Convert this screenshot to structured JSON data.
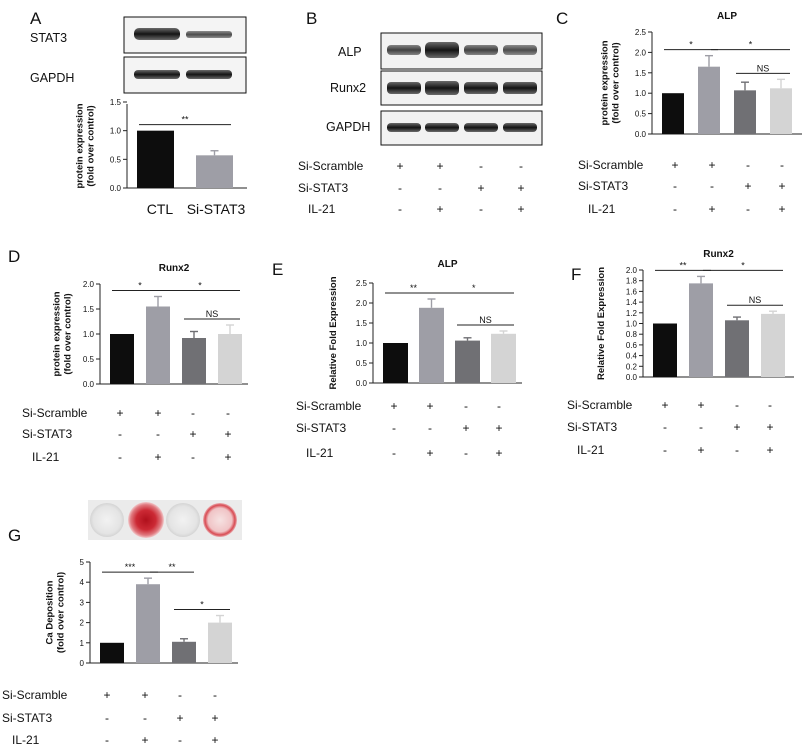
{
  "figure": {
    "conditions": {
      "labels": [
        "Si-Scramble",
        "Si-STAT3",
        "IL-21"
      ],
      "rows": [
        [
          "+",
          "+",
          "-",
          "-"
        ],
        [
          "-",
          "-",
          "+",
          "+"
        ],
        [
          "-",
          "+",
          "-",
          "+"
        ]
      ]
    },
    "blots": {
      "A": [
        "STAT3",
        "GAPDH"
      ],
      "B": [
        "ALP",
        "Runx2",
        "GAPDH"
      ]
    },
    "colors": {
      "bar1": "#0d0d0d",
      "bar2": "#9e9ea6",
      "bar3": "#707074",
      "bar4": "#d4d4d4",
      "axis": "#222222"
    }
  },
  "chart_data": [
    {
      "panel": "A",
      "type": "bar",
      "title": "",
      "ylabel": [
        "protein expression",
        "(fold over control)"
      ],
      "categories": [
        "CTL",
        "Si-STAT3"
      ],
      "values": [
        1.0,
        0.57
      ],
      "errors": [
        0,
        0.08
      ],
      "ylim": [
        0,
        1.5
      ],
      "ticks": [
        0,
        0.5,
        1.0,
        1.5
      ],
      "tick_labels": [
        "0.0",
        "0.5",
        "1.0",
        "1.5"
      ],
      "comparisons": [
        {
          "from": 0,
          "to": 1,
          "label": "**"
        }
      ]
    },
    {
      "panel": "C",
      "type": "bar",
      "title": "ALP",
      "ylabel": [
        "protein expression",
        "(fold over control)"
      ],
      "values": [
        1.0,
        1.65,
        1.07,
        1.12
      ],
      "errors": [
        0,
        0.27,
        0.2,
        0.22
      ],
      "ylim": [
        0,
        2.5
      ],
      "ticks": [
        0,
        0.5,
        1.0,
        1.5,
        2.0,
        2.5
      ],
      "tick_labels": [
        "0.0",
        "0.5",
        "1.0",
        "1.5",
        "2.0",
        "2.5"
      ],
      "comparisons": [
        {
          "from": 0,
          "to": 1,
          "label": "*"
        },
        {
          "from": 1,
          "to": 3,
          "label": "*"
        },
        {
          "from": 2,
          "to": 3,
          "label": "NS"
        }
      ]
    },
    {
      "panel": "D",
      "type": "bar",
      "title": "Runx2",
      "ylabel": [
        "protein expression",
        "(fold over control)"
      ],
      "values": [
        1.0,
        1.55,
        0.92,
        1.0
      ],
      "errors": [
        0,
        0.2,
        0.13,
        0.18
      ],
      "ylim": [
        0,
        2.0
      ],
      "ticks": [
        0,
        0.5,
        1.0,
        1.5,
        2.0
      ],
      "tick_labels": [
        "0.0",
        "0.5",
        "1.0",
        "1.5",
        "2.0"
      ],
      "comparisons": [
        {
          "from": 0,
          "to": 1,
          "label": "*"
        },
        {
          "from": 1,
          "to": 3,
          "label": "*"
        },
        {
          "from": 2,
          "to": 3,
          "label": "NS"
        }
      ]
    },
    {
      "panel": "E",
      "type": "bar",
      "title": "ALP",
      "ylabel": [
        "Relative Fold Expression"
      ],
      "values": [
        1.0,
        1.88,
        1.06,
        1.23
      ],
      "errors": [
        0,
        0.22,
        0.07,
        0.07
      ],
      "ylim": [
        0,
        2.5
      ],
      "ticks": [
        0,
        0.5,
        1.0,
        1.5,
        2.0,
        2.5
      ],
      "tick_labels": [
        "0.0",
        "0.5",
        "1.0",
        "1.5",
        "2.0",
        "2.5"
      ],
      "comparisons": [
        {
          "from": 0,
          "to": 1,
          "label": "**"
        },
        {
          "from": 1,
          "to": 3,
          "label": "*"
        },
        {
          "from": 2,
          "to": 3,
          "label": "NS"
        }
      ]
    },
    {
      "panel": "F",
      "type": "bar",
      "title": "Runx2",
      "ylabel": [
        "Relative Fold Expression"
      ],
      "values": [
        1.0,
        1.75,
        1.06,
        1.18
      ],
      "errors": [
        0,
        0.13,
        0.06,
        0.05
      ],
      "ylim": [
        0,
        2.0
      ],
      "ticks": [
        0,
        0.2,
        0.4,
        0.6,
        0.8,
        1.0,
        1.2,
        1.4,
        1.6,
        1.8,
        2.0
      ],
      "tick_labels": [
        "0.0",
        "0.2",
        "0.4",
        "0.6",
        "0.8",
        "1.0",
        "1.2",
        "1.4",
        "1.6",
        "1.8",
        "2.0"
      ],
      "comparisons": [
        {
          "from": 0,
          "to": 1,
          "label": "**"
        },
        {
          "from": 1,
          "to": 3,
          "label": "*"
        },
        {
          "from": 2,
          "to": 3,
          "label": "NS"
        }
      ]
    },
    {
      "panel": "G",
      "type": "bar",
      "title": "",
      "ylabel": [
        "Ca Deposition",
        "(fold over control)"
      ],
      "values": [
        1.0,
        3.9,
        1.05,
        2.0
      ],
      "errors": [
        0,
        0.3,
        0.15,
        0.35
      ],
      "ylim": [
        0,
        5
      ],
      "ticks": [
        0,
        1,
        2,
        3,
        4,
        5
      ],
      "tick_labels": [
        "0",
        "1",
        "2",
        "3",
        "4",
        "5"
      ],
      "comparisons": [
        {
          "from": 0,
          "to": 1,
          "label": "***"
        },
        {
          "from": 1,
          "to": 2,
          "label": "**"
        },
        {
          "from": 2,
          "to": 3,
          "label": "*"
        }
      ]
    }
  ]
}
